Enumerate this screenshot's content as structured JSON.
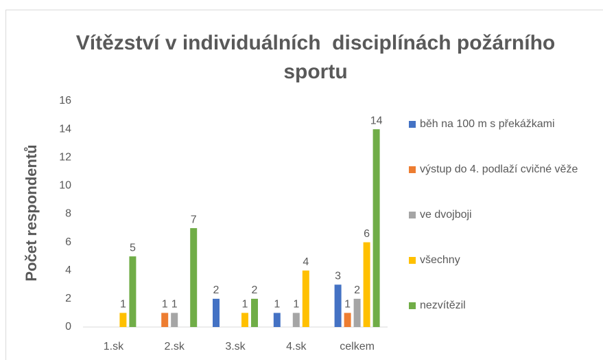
{
  "chart_data": {
    "type": "bar",
    "title": "Vítězství v individuálních  disciplínách požárního sportu",
    "y_label": "Počet respondentů",
    "categories": [
      "1.sk",
      "2.sk",
      "3.sk",
      "4.sk",
      "celkem"
    ],
    "series": [
      {
        "name": "běh na 100 m s překážkami",
        "color": "#4472c4",
        "values": [
          null,
          null,
          2,
          1,
          3
        ]
      },
      {
        "name": "výstup do 4. podlaží cvičné věže",
        "color": "#ed7d31",
        "values": [
          null,
          1,
          null,
          null,
          1
        ]
      },
      {
        "name": "ve dvojboji",
        "color": "#a5a5a5",
        "values": [
          null,
          1,
          null,
          1,
          2
        ]
      },
      {
        "name": "všechny",
        "color": "#ffc000",
        "values": [
          1,
          null,
          1,
          4,
          6
        ]
      },
      {
        "name": "nezvítězil",
        "color": "#70ad47",
        "values": [
          5,
          7,
          2,
          null,
          14
        ]
      }
    ],
    "ylim": [
      0,
      16
    ],
    "yticks": [
      0,
      2,
      4,
      6,
      8,
      10,
      12,
      14,
      16
    ],
    "grid": false,
    "legend": "right"
  }
}
